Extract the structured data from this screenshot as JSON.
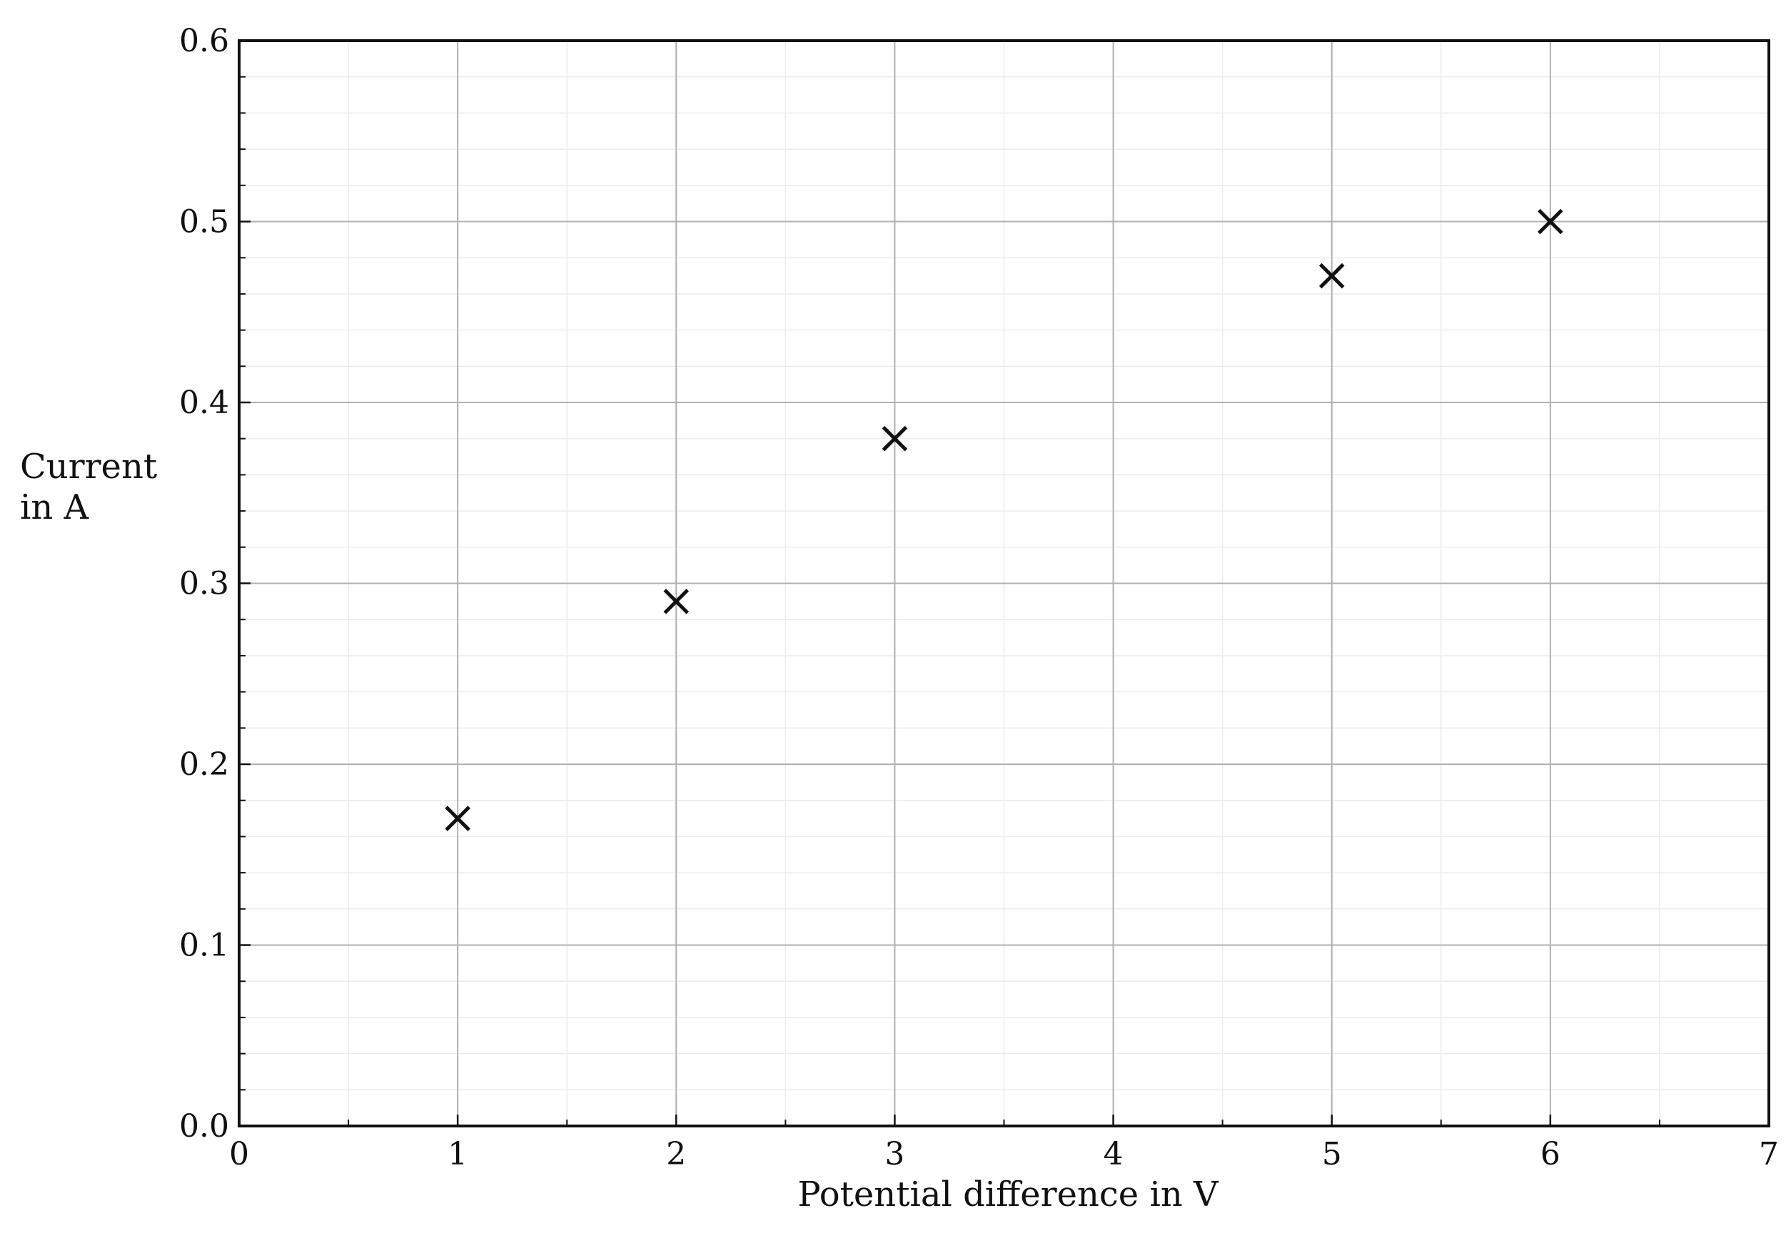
{
  "chart_data": {
    "type": "scatter",
    "title": "",
    "xlabel": "Potential difference in V",
    "ylabel_lines": [
      "Current",
      "in A"
    ],
    "xlim": [
      0,
      7
    ],
    "ylim": [
      0,
      0.6
    ],
    "x_ticks": [
      0,
      1,
      2,
      3,
      4,
      5,
      6,
      7
    ],
    "x_tick_labels": [
      "0",
      "1",
      "2",
      "3",
      "4",
      "5",
      "6",
      "7"
    ],
    "y_ticks": [
      0,
      0.1,
      0.2,
      0.3,
      0.4,
      0.5,
      0.6
    ],
    "y_tick_labels": [
      "0.0",
      "0.1",
      "0.2",
      "0.3",
      "0.4",
      "0.5",
      "0.6"
    ],
    "grid": true,
    "minor_grid": true,
    "marker": "x",
    "series": [
      {
        "points": [
          {
            "x": 1,
            "y": 0.17
          },
          {
            "x": 2,
            "y": 0.29
          },
          {
            "x": 3,
            "y": 0.38
          },
          {
            "x": 5,
            "y": 0.47
          },
          {
            "x": 6,
            "y": 0.5
          }
        ]
      }
    ],
    "colors": {
      "marker": "#111111",
      "major_grid": "#b0b0b0",
      "minor_grid": "#ececec",
      "axis": "#111111"
    }
  }
}
